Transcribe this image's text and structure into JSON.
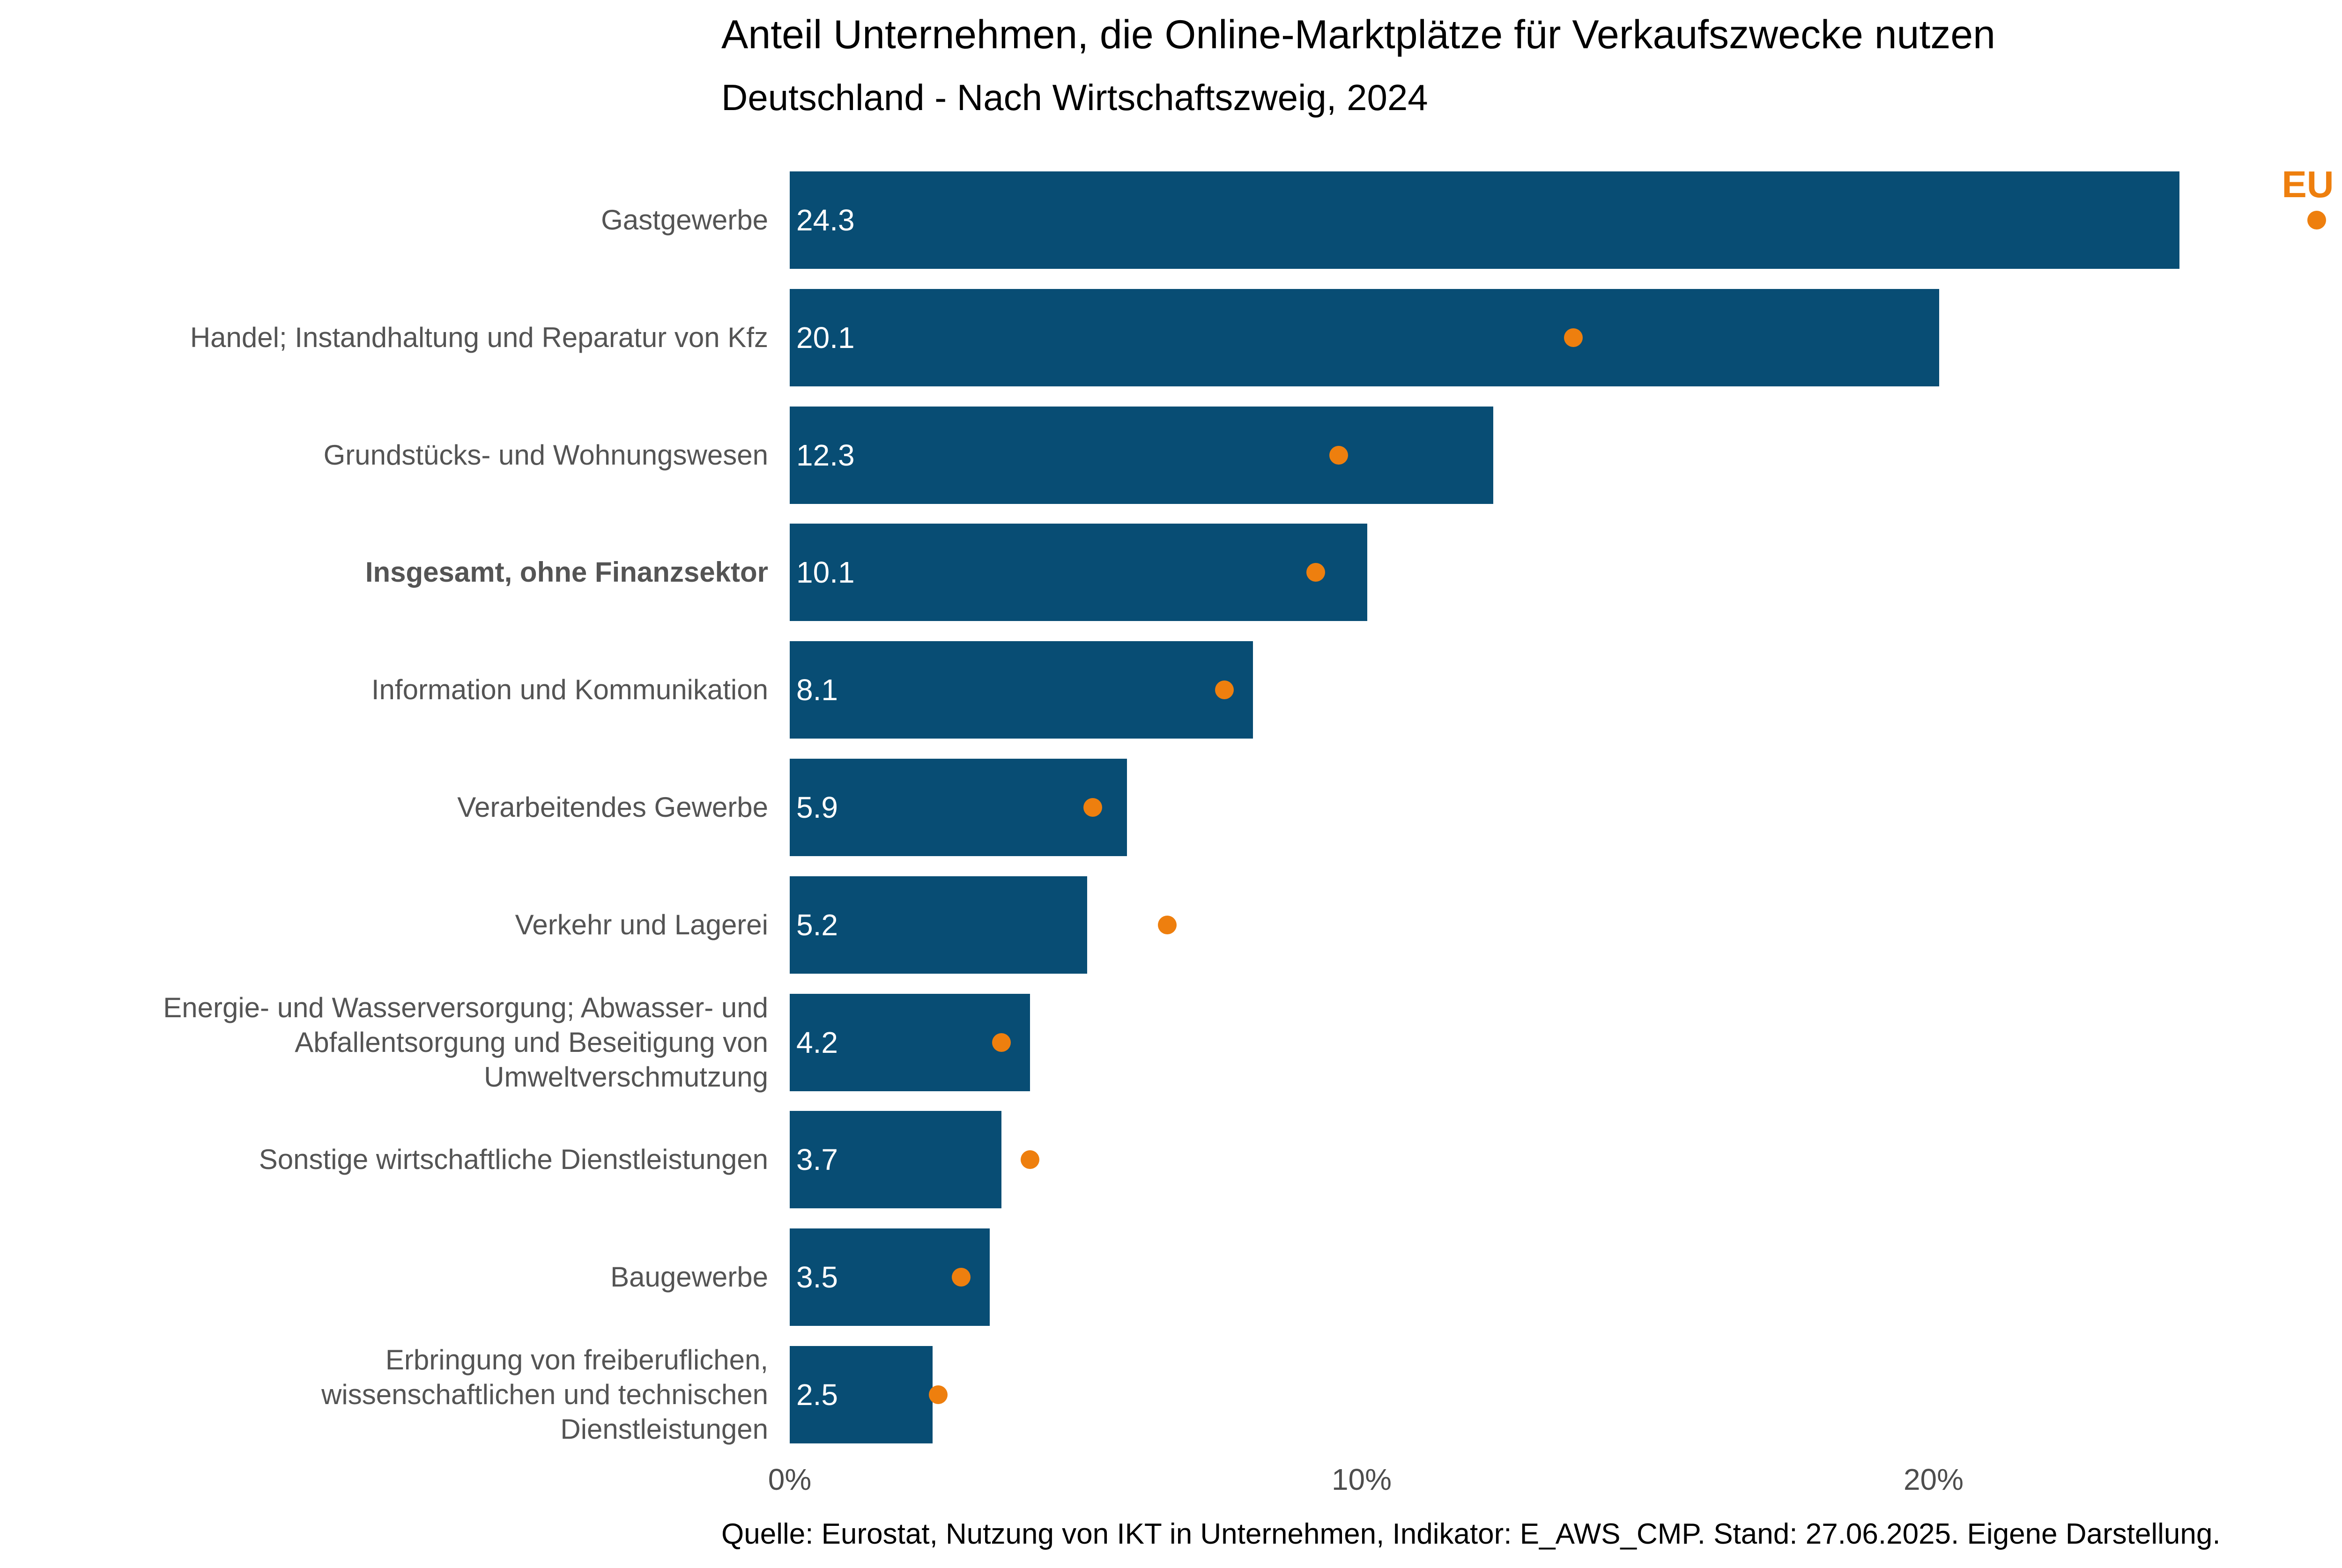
{
  "title": "Anteil Unternehmen, die Online-Marktplätze für Verkaufszwecke nutzen",
  "subtitle": "Deutschland - Nach Wirtschaftszweig, 2024",
  "source": "Quelle: Eurostat, Nutzung von IKT in Unternehmen, Indikator: E_AWS_CMP. Stand: 27.06.2025. Eigene Darstellung.",
  "legend": {
    "label": "EU Ø"
  },
  "colors": {
    "bar_blue": "#084d74",
    "marker_orange": "#ee7f0e",
    "category_gray": "#545454",
    "tick_gray": "#4d4d4d",
    "title_black": "#000000",
    "value_white": "#ffffff",
    "background": "#ffffff"
  },
  "chart_data": {
    "type": "bar",
    "orientation": "horizontal",
    "title": "Anteil Unternehmen, die Online-Marktplätze für Verkaufszwecke nutzen",
    "subtitle": "Deutschland - Nach Wirtschaftszweig, 2024",
    "xlabel": "",
    "ylabel": "",
    "xlim": [
      0,
      28.5
    ],
    "grid": false,
    "legend_position": "top-right",
    "value_labels": "inside-left",
    "categories": [
      "Gastgewerbe",
      "Handel; Instandhaltung und Reparatur von Kfz",
      "Grundstücks- und Wohnungswesen",
      "Insgesamt, ohne Finanzsektor",
      "Information und Kommunikation",
      "Verarbeitendes Gewerbe",
      "Verkehr und Lagerei",
      "Energie- und Wasserversorgung; Abwasser- und\nAbfallentsorgung und Beseitigung von\nUmweltverschmutzung",
      "Sonstige wirtschaftliche Dienstleistungen",
      "Baugewerbe",
      "Erbringung von freiberuflichen,\nwissenschaftlichen und technischen\nDienstleistungen"
    ],
    "emphasized_category_index": 3,
    "series": [
      {
        "name": "Deutschland",
        "type": "bar",
        "color": "#084d74",
        "values": [
          24.3,
          20.1,
          12.3,
          10.1,
          8.1,
          5.9,
          5.2,
          4.2,
          3.7,
          3.5,
          2.5
        ]
      },
      {
        "name": "EU Ø",
        "type": "scatter",
        "color": "#ee7f0e",
        "values_estimated": true,
        "values": [
          26.7,
          13.7,
          9.6,
          9.2,
          7.6,
          5.3,
          6.6,
          3.7,
          4.2,
          3.0,
          2.6
        ]
      }
    ],
    "xticks": [
      {
        "value": 0,
        "label": "0%"
      },
      {
        "value": 10,
        "label": "10%"
      },
      {
        "value": 20,
        "label": "20%"
      }
    ]
  }
}
